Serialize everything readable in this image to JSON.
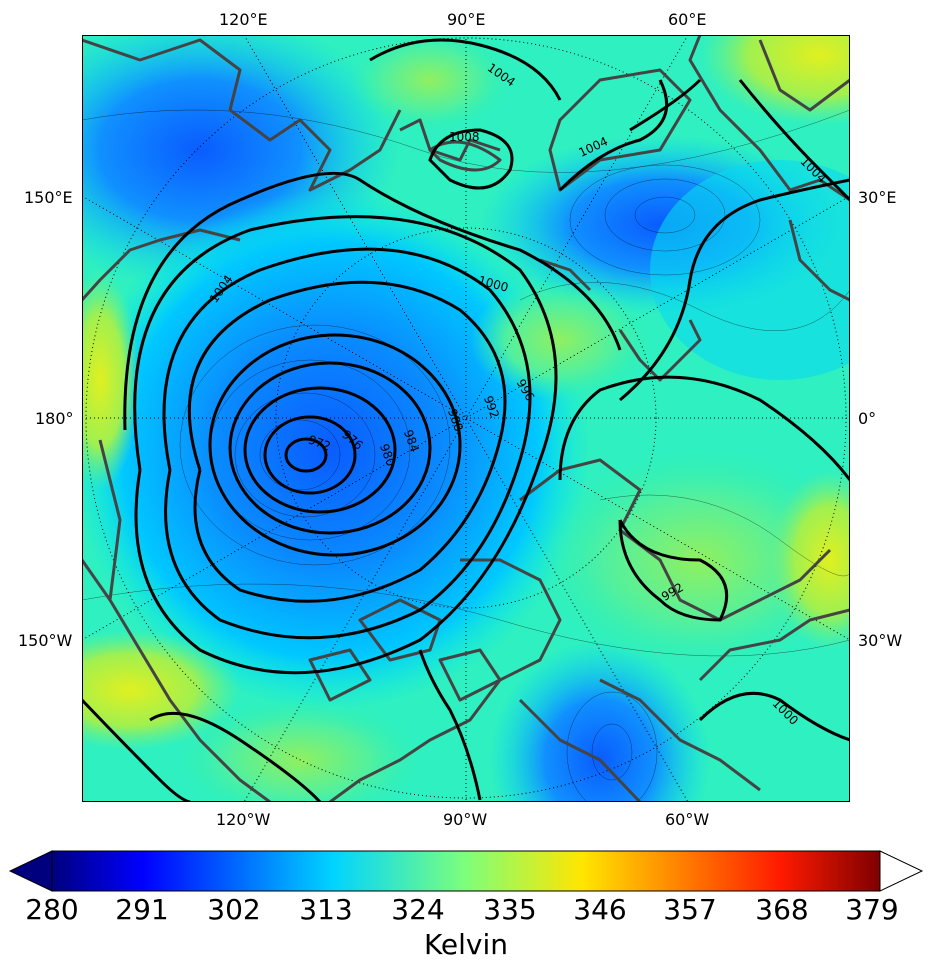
{
  "map": {
    "projection": "north polar stereographic",
    "field": "potential temperature (colour fill, thin contours)",
    "pressure_contours": "sea-level pressure (thick black contours)",
    "lat_circles": "dotted",
    "meridians": "dotted"
  },
  "labels": {
    "top": [
      "120°E",
      "90°E",
      "60°E"
    ],
    "bottom": [
      "120°W",
      "90°W",
      "60°W"
    ],
    "left": [
      "150°E",
      "180°",
      "150°W"
    ],
    "right": [
      "30°E",
      "0°",
      "30°W"
    ]
  },
  "contour_labels": [
    "1004",
    "1008",
    "1004",
    "1004",
    "1004",
    "1000",
    "996",
    "992",
    "988",
    "984",
    "980",
    "976",
    "972",
    "992",
    "1000"
  ],
  "colorbar": {
    "ticks": [
      "280",
      "291",
      "302",
      "313",
      "324",
      "335",
      "346",
      "357",
      "368",
      "379"
    ],
    "title": "Kelvin",
    "min": 280,
    "max": 379,
    "colormap": "jet",
    "extend": "both"
  },
  "colors": {
    "low": "#0a6fff",
    "mid": "#00e0f0",
    "green": "#30f0a0",
    "yellow_green": "#b0f040",
    "coast": "#444444"
  }
}
